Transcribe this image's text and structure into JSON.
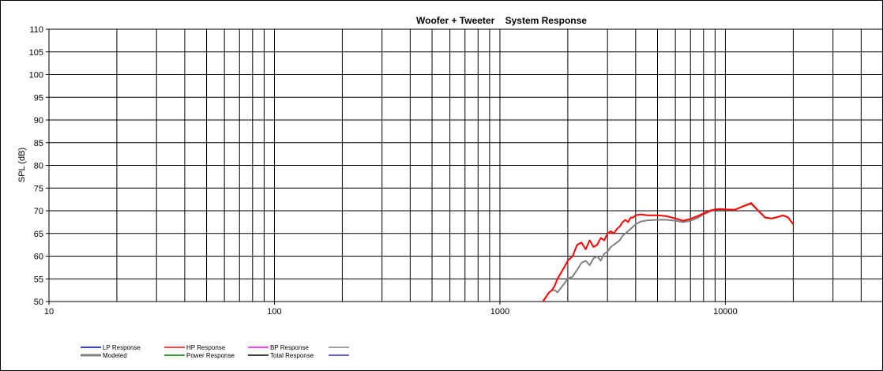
{
  "chart_data": {
    "type": "line",
    "title": "Woofer + Tweeter    System Response",
    "ylabel": "SPL (dB)",
    "xlabel": "",
    "x_scale": "log",
    "xlim": [
      10,
      50000
    ],
    "ylim": [
      50,
      110
    ],
    "grid": true,
    "x_tick_labels": [
      "10",
      "100",
      "1000",
      "10000"
    ],
    "y_ticks": [
      50,
      55,
      60,
      65,
      70,
      75,
      80,
      85,
      90,
      95,
      100,
      105,
      110
    ],
    "legend_position": "bottom",
    "legend": [
      {
        "label": "LP Response",
        "color": "#0000cc"
      },
      {
        "label": "HP Response",
        "color": "#ff0000"
      },
      {
        "label": "BP Response",
        "color": "#ff00ff"
      },
      {
        "label": "",
        "color": "#808080"
      },
      {
        "label": "Modeled",
        "color": "#808080"
      },
      {
        "label": "Power Response",
        "color": "#008000"
      },
      {
        "label": "Total Response",
        "color": "#000000"
      },
      {
        "label": "",
        "color": "#3333cc"
      }
    ],
    "series": [
      {
        "name": "HP Response",
        "color": "#ff0000",
        "x": [
          1550,
          1600,
          1650,
          1700,
          1750,
          1800,
          1850,
          1900,
          1950,
          2000,
          2050,
          2100,
          2200,
          2300,
          2400,
          2500,
          2600,
          2700,
          2800,
          2900,
          3000,
          3100,
          3200,
          3300,
          3400,
          3500,
          3600,
          3700,
          3800,
          3900,
          4000,
          4200,
          4500,
          5000,
          5500,
          6000,
          6500,
          7000,
          7500,
          8000,
          8500,
          9000,
          9500,
          10000,
          11000,
          12000,
          13000,
          14000,
          15000,
          16000,
          17000,
          18000,
          19000,
          20000
        ],
        "values": [
          50,
          51,
          52,
          52.5,
          53.5,
          55,
          56,
          57,
          58,
          59,
          59.5,
          60,
          62.5,
          63,
          61.5,
          63.5,
          62,
          62.5,
          64,
          63.5,
          65,
          65.5,
          65,
          66,
          66.5,
          67.5,
          68,
          67.5,
          68.5,
          68.5,
          69,
          69.2,
          69,
          69,
          68.8,
          68.3,
          67.8,
          68.2,
          68.8,
          69.4,
          70,
          70.3,
          70.4,
          70.3,
          70.2,
          71,
          71.7,
          70,
          68.5,
          68.3,
          68.6,
          69,
          68.5,
          67
        ]
      },
      {
        "name": "Modeled",
        "color": "#808080",
        "x": [
          1550,
          1600,
          1650,
          1700,
          1750,
          1800,
          1900,
          2000,
          2100,
          2200,
          2300,
          2400,
          2500,
          2600,
          2700,
          2800,
          2900,
          3000,
          3100,
          3200,
          3300,
          3400,
          3500,
          3700,
          3900,
          4000,
          4200,
          4500,
          5000,
          5500,
          6000,
          6500,
          7000,
          7500,
          8000,
          8500,
          9000,
          9500,
          10000,
          11000,
          12000,
          13000,
          14000,
          15000,
          16000,
          17000,
          18000,
          19000,
          20000
        ],
        "values": [
          50,
          51,
          52,
          52.5,
          52.5,
          52,
          53.5,
          55,
          55.5,
          57,
          58.5,
          59,
          58,
          59.5,
          60,
          59,
          60.5,
          61,
          62,
          62.5,
          63,
          63.5,
          64.5,
          65.5,
          66.5,
          67,
          67.6,
          67.9,
          68,
          68,
          67.8,
          67.5,
          67.8,
          68.4,
          69.2,
          69.8,
          70.2,
          70.3,
          70.2,
          70.2,
          71,
          71.5,
          70,
          68.5,
          68.3,
          68.6,
          69,
          68.5,
          67
        ]
      }
    ]
  }
}
